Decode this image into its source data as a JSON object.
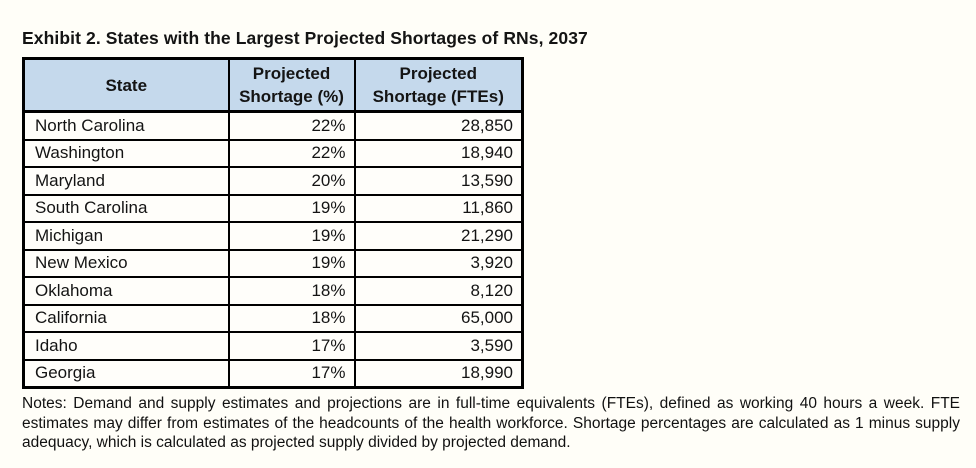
{
  "title": "Exhibit 2. States with the Largest Projected Shortages of RNs, 2037",
  "table": {
    "header": {
      "state": "State",
      "pct_lines": [
        "Projected",
        "Shortage (%)"
      ],
      "fte_lines": [
        "Projected",
        "Shortage (FTEs)"
      ]
    },
    "rows": [
      {
        "state": "North Carolina",
        "pct": "22%",
        "fte": "28,850"
      },
      {
        "state": "Washington",
        "pct": "22%",
        "fte": "18,940"
      },
      {
        "state": "Maryland",
        "pct": "20%",
        "fte": "13,590"
      },
      {
        "state": "South Carolina",
        "pct": "19%",
        "fte": "11,860"
      },
      {
        "state": "Michigan",
        "pct": "19%",
        "fte": "21,290"
      },
      {
        "state": "New Mexico",
        "pct": "19%",
        "fte": "3,920"
      },
      {
        "state": "Oklahoma",
        "pct": "18%",
        "fte": "8,120"
      },
      {
        "state": "California",
        "pct": "18%",
        "fte": "65,000"
      },
      {
        "state": "Idaho",
        "pct": "17%",
        "fte": "3,590"
      },
      {
        "state": "Georgia",
        "pct": "17%",
        "fte": "18,990"
      }
    ]
  },
  "notes": "Notes: Demand and supply estimates and projections are in full-time equivalents (FTEs), defined as working 40 hours a week. FTE estimates may differ from estimates of the headcounts of the health workforce. Shortage percentages are calculated as 1 minus supply adequacy, which is calculated as projected supply divided by projected demand.",
  "colors": {
    "header_bg": "#c5d9ec",
    "page_bg": "#fffef8",
    "border": "#000000"
  }
}
